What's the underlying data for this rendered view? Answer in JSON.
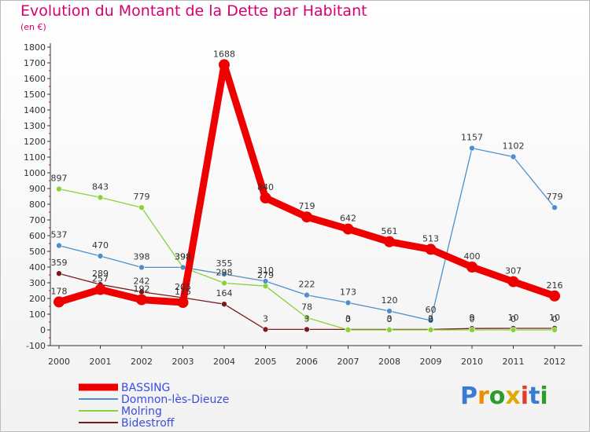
{
  "title": "Evolution du Montant de la Dette par Habitant",
  "subtitle": "(en €)",
  "logo": "Proxiti",
  "chart_data": {
    "type": "line",
    "x": [
      "2000",
      "2001",
      "2002",
      "2003",
      "2004",
      "2005",
      "2006",
      "2007",
      "2008",
      "2009",
      "2010",
      "2011",
      "2012"
    ],
    "ylim": [
      -100,
      1800
    ],
    "yticks": [
      -100,
      0,
      100,
      200,
      300,
      400,
      500,
      600,
      700,
      800,
      900,
      1000,
      1100,
      1200,
      1300,
      1400,
      1500,
      1600,
      1700,
      1800
    ],
    "grid": false,
    "legend_position": "bottom-left",
    "series": [
      {
        "name": "BASSING",
        "color": "#ee0000",
        "values": [
          178,
          257,
          192,
          175,
          1688,
          840,
          719,
          642,
          561,
          513,
          400,
          307,
          216
        ]
      },
      {
        "name": "Domnon-lès-Dieuze",
        "color": "#4f8fc7",
        "values": [
          537,
          470,
          398,
          398,
          355,
          310,
          222,
          173,
          120,
          60,
          1157,
          1102,
          779
        ]
      },
      {
        "name": "Molring",
        "color": "#88d23a",
        "values": [
          897,
          843,
          779,
          398,
          298,
          279,
          78,
          0,
          0,
          0,
          0,
          0,
          0
        ]
      },
      {
        "name": "Bidestroff",
        "color": "#7a1a1a",
        "values": [
          359,
          289,
          242,
          205,
          164,
          3,
          3,
          3,
          3,
          3,
          9,
          10,
          10
        ]
      }
    ],
    "data_labels": [
      {
        "x": "2000",
        "text": "178"
      },
      {
        "x": "2001",
        "text": "257"
      },
      {
        "x": "2002",
        "text": "192"
      },
      {
        "x": "2003",
        "text": "175"
      },
      {
        "x": "2004",
        "text": "1688"
      },
      {
        "x": "2005",
        "text": "840"
      },
      {
        "x": "2006",
        "text": "719"
      },
      {
        "x": "2007",
        "text": "642"
      },
      {
        "x": "2008",
        "text": "561"
      },
      {
        "x": "2009",
        "text": "513"
      },
      {
        "x": "2010",
        "text": "400"
      },
      {
        "x": "2011",
        "text": "307"
      },
      {
        "x": "2012",
        "text": "216"
      },
      {
        "x": "2000",
        "text": "537"
      },
      {
        "x": "2001",
        "text": "470"
      },
      {
        "x": "2002",
        "text": "398"
      },
      {
        "x": "2003",
        "text": "398"
      },
      {
        "x": "2004",
        "text": "355"
      },
      {
        "x": "2005",
        "text": "310"
      },
      {
        "x": "2006",
        "text": "222"
      },
      {
        "x": "2007",
        "text": "173"
      },
      {
        "x": "2008",
        "text": "120"
      },
      {
        "x": "2009",
        "text": "60"
      },
      {
        "x": "2010",
        "text": "1157"
      },
      {
        "x": "2011",
        "text": "1102"
      },
      {
        "x": "2012",
        "text": "779"
      },
      {
        "x": "2000",
        "text": "897"
      },
      {
        "x": "2001",
        "text": "843"
      },
      {
        "x": "2002",
        "text": "779"
      },
      {
        "x": "2003",
        "text": "398"
      },
      {
        "x": "2004",
        "text": "298"
      },
      {
        "x": "2005",
        "text": "279"
      },
      {
        "x": "2006",
        "text": "78"
      },
      {
        "x": "2007",
        "text": "0"
      },
      {
        "x": "2008",
        "text": "0"
      },
      {
        "x": "2009",
        "text": "0"
      },
      {
        "x": "2010",
        "text": "0"
      },
      {
        "x": "2011",
        "text": "0"
      },
      {
        "x": "2012",
        "text": "0"
      },
      {
        "x": "2000",
        "text": "359"
      },
      {
        "x": "2001",
        "text": "289"
      },
      {
        "x": "2002",
        "text": "242"
      },
      {
        "x": "2003",
        "text": "205"
      },
      {
        "x": "2004",
        "text": "164"
      },
      {
        "x": "2005",
        "text": "3"
      },
      {
        "x": "2006",
        "text": "3"
      },
      {
        "x": "2007",
        "text": "3"
      },
      {
        "x": "2008",
        "text": "3"
      },
      {
        "x": "2009",
        "text": "3"
      },
      {
        "x": "2010",
        "text": "9"
      },
      {
        "x": "2011",
        "text": "10"
      },
      {
        "x": "2012",
        "text": "10"
      }
    ]
  }
}
